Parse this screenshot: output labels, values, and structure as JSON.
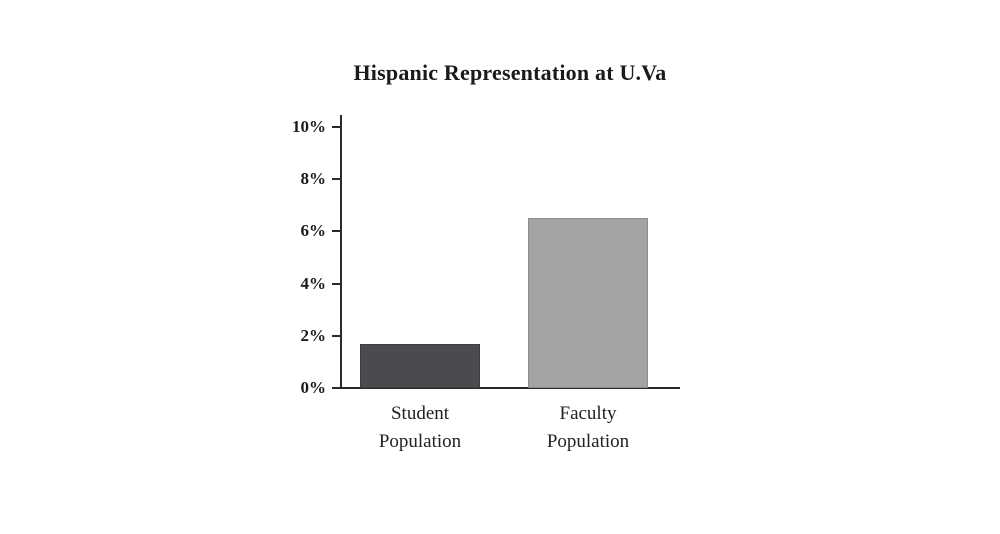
{
  "page": {
    "background": "#ffffff"
  },
  "chart_data": {
    "type": "bar",
    "title": "Hispanic Representation at U.Va",
    "categories": [
      [
        "Student",
        "Population"
      ],
      [
        "Faculty",
        "Population"
      ]
    ],
    "values": [
      1.7,
      6.5
    ],
    "xlabel": "",
    "ylabel": "",
    "ylim": [
      0,
      10
    ],
    "ytick_step": 2,
    "ytick_labels": [
      "0%",
      "2%",
      "4%",
      "6%",
      "8%",
      "10%"
    ],
    "grid": false,
    "legend": "none",
    "bar_colors": [
      "#4a4a4f",
      "#a3a3a5"
    ],
    "bar_border_colors": [
      "#3c3c41",
      "#8e8e91"
    ],
    "axis_color": "#2b2b2b",
    "title_color": "#1a1a1a"
  }
}
